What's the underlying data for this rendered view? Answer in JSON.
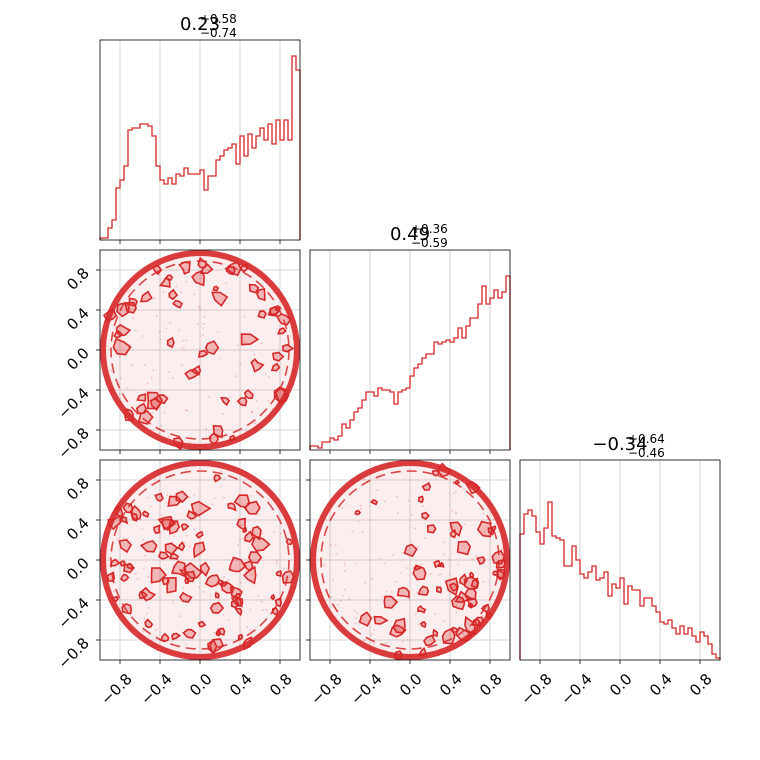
{
  "chart_data": {
    "type": "corner",
    "color": "#d62728",
    "grid": true,
    "ticks": [
      -0.8,
      -0.4,
      0.0,
      0.4,
      0.8
    ],
    "tick_labels": [
      "−0.8",
      "−0.4",
      "0.0",
      "0.4",
      "0.8"
    ],
    "range": [
      -1.0,
      1.0
    ],
    "parameters": [
      {
        "median": "0.23",
        "plus": "+0.58",
        "minus": "−0.74"
      },
      {
        "median": "0.49",
        "plus": "+0.36",
        "minus": "−0.59"
      },
      {
        "median": "−0.34",
        "plus": "+0.64",
        "minus": "−0.46"
      }
    ],
    "histograms": [
      {
        "param": 0,
        "bin_edges_range": [
          -1.0,
          1.0
        ],
        "bins": 50,
        "counts": [
          0.01,
          0.01,
          0.06,
          0.1,
          0.26,
          0.3,
          0.37,
          0.55,
          0.56,
          0.56,
          0.58,
          0.58,
          0.57,
          0.52,
          0.37,
          0.3,
          0.28,
          0.31,
          0.28,
          0.33,
          0.32,
          0.36,
          0.33,
          0.33,
          0.33,
          0.35,
          0.25,
          0.32,
          0.32,
          0.4,
          0.42,
          0.45,
          0.46,
          0.48,
          0.38,
          0.52,
          0.42,
          0.53,
          0.46,
          0.52,
          0.56,
          0.5,
          0.58,
          0.48,
          0.6,
          0.5,
          0.6,
          0.5,
          0.92,
          0.85
        ]
      },
      {
        "param": 1,
        "bin_edges_range": [
          -1.0,
          1.0
        ],
        "bins": 50,
        "counts": [
          0.02,
          0.02,
          0.01,
          0.04,
          0.04,
          0.06,
          0.05,
          0.07,
          0.13,
          0.11,
          0.15,
          0.19,
          0.21,
          0.25,
          0.29,
          0.29,
          0.27,
          0.31,
          0.3,
          0.3,
          0.29,
          0.23,
          0.29,
          0.3,
          0.31,
          0.37,
          0.41,
          0.43,
          0.46,
          0.48,
          0.48,
          0.54,
          0.53,
          0.54,
          0.55,
          0.54,
          0.56,
          0.61,
          0.56,
          0.62,
          0.66,
          0.66,
          0.73,
          0.82,
          0.73,
          0.76,
          0.8,
          0.76,
          0.79,
          0.87
        ]
      },
      {
        "param": 2,
        "bin_edges_range": [
          -1.0,
          1.0
        ],
        "bins": 50,
        "counts": [
          0.63,
          0.73,
          0.75,
          0.72,
          0.64,
          0.58,
          0.66,
          0.79,
          0.62,
          0.61,
          0.6,
          0.47,
          0.47,
          0.57,
          0.5,
          0.43,
          0.41,
          0.44,
          0.47,
          0.4,
          0.41,
          0.44,
          0.32,
          0.38,
          0.36,
          0.41,
          0.28,
          0.37,
          0.35,
          0.35,
          0.27,
          0.31,
          0.31,
          0.27,
          0.24,
          0.19,
          0.18,
          0.2,
          0.16,
          0.13,
          0.17,
          0.13,
          0.16,
          0.12,
          0.09,
          0.14,
          0.12,
          0.08,
          0.03,
          0.01
        ]
      }
    ],
    "contours_2d": [
      {
        "x_param": 0,
        "y_param": 1,
        "support": "unit-disk",
        "description_of_density": "density concentrated on disk edge, strongest near x=1"
      },
      {
        "x_param": 0,
        "y_param": 2,
        "support": "unit-disk",
        "description_of_density": "near-uniform patchy density over unit disk"
      },
      {
        "x_param": 1,
        "y_param": 2,
        "support": "unit-disk",
        "description_of_density": "density concentrated in lower-right of disk"
      }
    ]
  }
}
